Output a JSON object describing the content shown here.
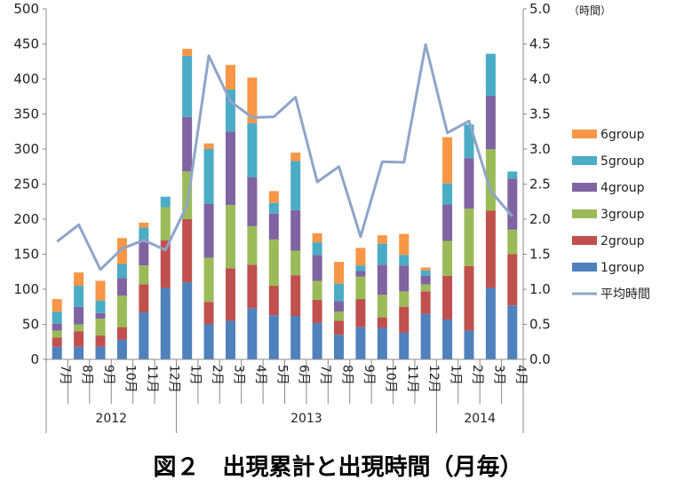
{
  "caption": "図２　出現累計と出現時間（月毎）",
  "colors": {
    "group1": "#4F81BD",
    "group2": "#C0504D",
    "group3": "#9BBB59",
    "group4": "#8064A2",
    "group5": "#4BACC6",
    "group6": "#F79646",
    "line": "#8EA5C9"
  },
  "chart_data": {
    "type": "bar",
    "stacked": true,
    "secondary_line": true,
    "categories": [
      "7月",
      "8月",
      "9月",
      "10月",
      "11月",
      "12月",
      "1月",
      "2月",
      "3月",
      "4月",
      "5月",
      "6月",
      "7月",
      "8月",
      "9月",
      "10月",
      "11月",
      "12月",
      "1月",
      "2月",
      "3月",
      "4月"
    ],
    "year_groups": [
      {
        "label": "2012",
        "count": 6
      },
      {
        "label": "2013",
        "count": 12
      },
      {
        "label": "2014",
        "count": 4
      }
    ],
    "y_left": {
      "min": 0,
      "max": 500,
      "step": 50,
      "ticks": [
        "0",
        "50",
        "100",
        "150",
        "200",
        "250",
        "300",
        "350",
        "400",
        "450",
        "500"
      ]
    },
    "y_right": {
      "min": 0,
      "max": 5.0,
      "step": 0.5,
      "ticks": [
        "0.0",
        "0.5",
        "1.0",
        "1.5",
        "2.0",
        "2.5",
        "3.0",
        "3.5",
        "4.0",
        "4.5",
        "5.0"
      ],
      "unit_label": "（時間）"
    },
    "series": [
      {
        "name": "1group",
        "values": [
          18,
          18,
          18,
          28,
          67,
          102,
          110,
          50,
          55,
          73,
          63,
          62,
          52,
          35,
          46,
          45,
          38,
          65,
          57,
          41,
          102,
          77
        ]
      },
      {
        "name": "2group",
        "values": [
          13,
          22,
          16,
          18,
          40,
          68,
          90,
          32,
          75,
          62,
          42,
          58,
          33,
          20,
          40,
          15,
          37,
          32,
          62,
          92,
          110,
          73
        ]
      },
      {
        "name": "3group",
        "values": [
          10,
          10,
          24,
          45,
          27,
          47,
          68,
          63,
          90,
          55,
          66,
          35,
          27,
          13,
          32,
          32,
          22,
          10,
          50,
          82,
          88,
          35
        ]
      },
      {
        "name": "4group",
        "values": [
          10,
          25,
          8,
          25,
          37,
          0,
          78,
          77,
          105,
          70,
          37,
          58,
          37,
          15,
          8,
          43,
          37,
          12,
          52,
          72,
          76,
          73
        ]
      },
      {
        "name": "5group",
        "values": [
          17,
          30,
          18,
          20,
          17,
          15,
          87,
          78,
          60,
          77,
          15,
          70,
          18,
          25,
          8,
          30,
          15,
          8,
          30,
          48,
          60,
          10
        ]
      },
      {
        "name": "6group",
        "values": [
          18,
          19,
          28,
          37,
          7,
          0,
          10,
          8,
          35,
          65,
          17,
          12,
          13,
          31,
          25,
          12,
          30,
          4,
          66,
          0,
          0,
          0
        ]
      }
    ],
    "line_series": {
      "name": "平均時間",
      "values": [
        1.68,
        1.92,
        1.28,
        1.58,
        1.7,
        1.56,
        2.2,
        4.33,
        3.68,
        3.45,
        3.46,
        3.74,
        2.53,
        2.75,
        1.75,
        2.82,
        2.81,
        4.49,
        3.23,
        3.4,
        2.4,
        2.04
      ]
    },
    "legend": {
      "placement": "right",
      "entries": [
        "6group",
        "5group",
        "4group",
        "3group",
        "2group",
        "1group",
        "平均時間"
      ]
    },
    "grid": false
  }
}
